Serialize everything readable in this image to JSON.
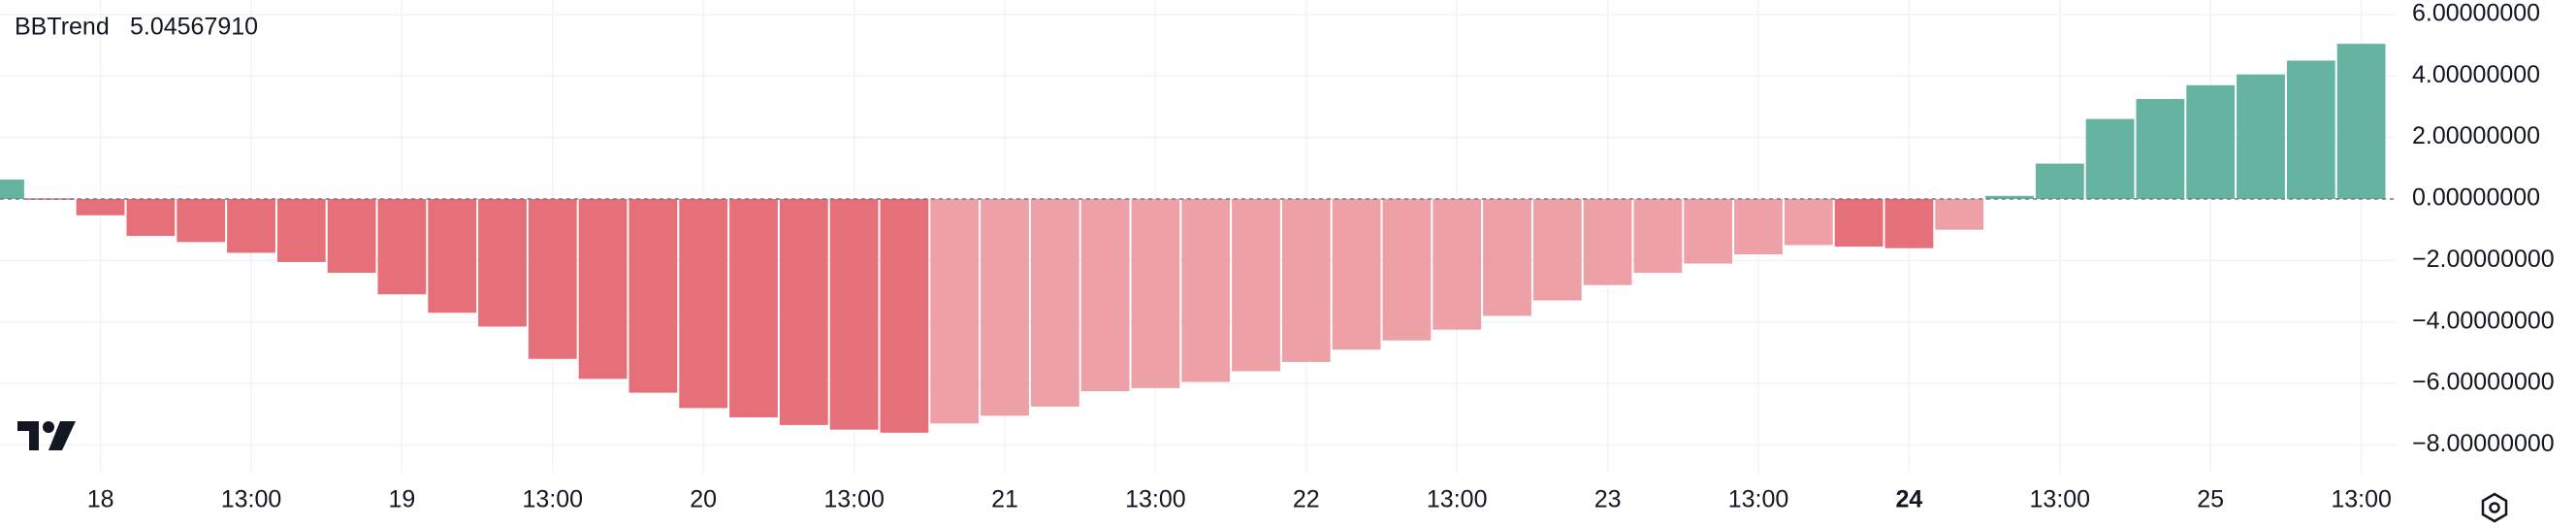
{
  "chart_data": {
    "type": "bar",
    "title": "BBTrend",
    "current_value": 5.0456791,
    "current_value_label": "5.04567910",
    "current_value_color": "#4a9e84",
    "categories": [
      null,
      null,
      "18",
      null,
      null,
      "13:00",
      null,
      null,
      "19",
      null,
      null,
      "13:00",
      null,
      null,
      "20",
      null,
      null,
      "13:00",
      null,
      null,
      "21",
      null,
      null,
      "13:00",
      null,
      null,
      "22",
      null,
      null,
      "13:00",
      null,
      null,
      "23",
      null,
      null,
      "13:00",
      null,
      null,
      "24",
      null,
      null,
      "13:00",
      null,
      null,
      "25",
      null,
      null,
      "13:00"
    ],
    "bold_category_index": 38,
    "series": [
      {
        "name": "BBTrend",
        "values": [
          0.63,
          0.02,
          -0.53,
          -1.2,
          -1.4,
          -1.75,
          -2.05,
          -2.4,
          -3.1,
          -3.7,
          -4.15,
          -5.2,
          -5.85,
          -6.3,
          -6.8,
          -7.1,
          -7.35,
          -7.5,
          -7.6,
          -7.3,
          -7.05,
          -6.75,
          -6.25,
          -6.15,
          -5.95,
          -5.6,
          -5.3,
          -4.9,
          -4.6,
          -4.25,
          -3.8,
          -3.3,
          -2.8,
          -2.4,
          -2.1,
          -1.8,
          -1.5,
          -1.55,
          -1.6,
          -1.0,
          0.1,
          1.15,
          2.6,
          3.25,
          3.7,
          4.05,
          4.5,
          5.0456791
        ],
        "colors": [
          "#66b3a1",
          "#e6707a",
          "#e6707a",
          "#e6707a",
          "#e6707a",
          "#e6707a",
          "#e6707a",
          "#e6707a",
          "#e6707a",
          "#e6707a",
          "#e6707a",
          "#e6707a",
          "#e6707a",
          "#e6707a",
          "#e6707a",
          "#e6707a",
          "#e6707a",
          "#e6707a",
          "#e6707a",
          "#eda0a6",
          "#eda0a6",
          "#eda0a6",
          "#eda0a6",
          "#eda0a6",
          "#eda0a6",
          "#eda0a6",
          "#eda0a6",
          "#eda0a6",
          "#eda0a6",
          "#eda0a6",
          "#eda0a6",
          "#eda0a6",
          "#eda0a6",
          "#eda0a6",
          "#eda0a6",
          "#eda0a6",
          "#eda0a6",
          "#e6707a",
          "#e6707a",
          "#eda0a6",
          "#66b3a1",
          "#66b3a1",
          "#66b3a1",
          "#66b3a1",
          "#66b3a1",
          "#66b3a1",
          "#66b3a1",
          "#66b3a1"
        ]
      }
    ],
    "ylim": [
      -8.9,
      6.47
    ],
    "yticks": [
      {
        "value": 6,
        "label": "6.00000000"
      },
      {
        "value": 4,
        "label": "4.00000000"
      },
      {
        "value": 2,
        "label": "2.00000000"
      },
      {
        "value": 0,
        "label": "0.00000000"
      },
      {
        "value": -2,
        "label": "−2.00000000"
      },
      {
        "value": -4,
        "label": "−4.00000000"
      },
      {
        "value": -6,
        "label": "−6.00000000"
      },
      {
        "value": -8,
        "label": "−8.00000000"
      }
    ],
    "grid": true
  }
}
